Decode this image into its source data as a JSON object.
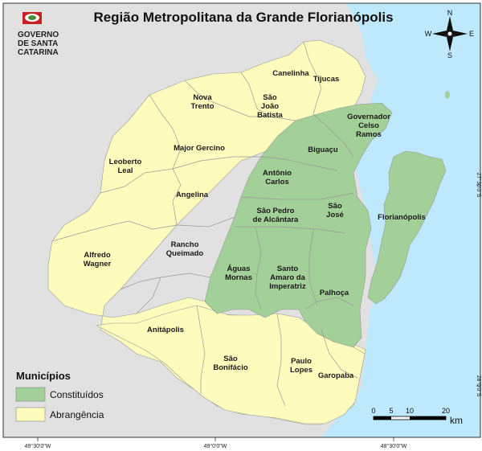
{
  "map": {
    "title": "Região Metropolitana da Grande Florianópolis",
    "logo": {
      "lines": [
        "GOVERNO",
        "DE SANTA",
        "CATARINA"
      ]
    },
    "compass": {
      "n": "N",
      "s": "S",
      "e": "E",
      "w": "W"
    },
    "municipios": [
      {
        "id": "canelinha",
        "lines": [
          "Canelinha"
        ],
        "category": "abrangencia"
      },
      {
        "id": "tijucas",
        "lines": [
          "Tijucas"
        ],
        "category": "abrangencia"
      },
      {
        "id": "nova-trento",
        "lines": [
          "Nova",
          "Trento"
        ],
        "category": "abrangencia"
      },
      {
        "id": "sao-joao-batista",
        "lines": [
          "São",
          "João",
          "Batista"
        ],
        "category": "abrangencia"
      },
      {
        "id": "governador-celso-ramos",
        "lines": [
          "Governador",
          "Celso",
          "Ramos"
        ],
        "category": "constituidos"
      },
      {
        "id": "major-gercino",
        "lines": [
          "Major Gercino"
        ],
        "category": "abrangencia"
      },
      {
        "id": "biguacu",
        "lines": [
          "Biguaçu"
        ],
        "category": "constituidos"
      },
      {
        "id": "leoberto-leal",
        "lines": [
          "Leoberto",
          "Leal"
        ],
        "category": "abrangencia"
      },
      {
        "id": "antonio-carlos",
        "lines": [
          "Antônio",
          "Carlos"
        ],
        "category": "constituidos"
      },
      {
        "id": "angelina",
        "lines": [
          "Angelina"
        ],
        "category": "abrangencia"
      },
      {
        "id": "sao-pedro-de-alcantara",
        "lines": [
          "São Pedro",
          "de Alcântara"
        ],
        "category": "constituidos"
      },
      {
        "id": "sao-jose",
        "lines": [
          "São",
          "José"
        ],
        "category": "constituidos"
      },
      {
        "id": "florianopolis",
        "lines": [
          "Florianópolis"
        ],
        "category": "constituidos"
      },
      {
        "id": "rancho-queimado",
        "lines": [
          "Rancho",
          "Queimado"
        ],
        "category": "abrangencia"
      },
      {
        "id": "alfredo-wagner",
        "lines": [
          "Alfredo",
          "Wagner"
        ],
        "category": "abrangencia"
      },
      {
        "id": "aguas-mornas",
        "lines": [
          "Águas",
          "Mornas"
        ],
        "category": "constituidos"
      },
      {
        "id": "santo-amaro-da-imperatriz",
        "lines": [
          "Santo",
          "Amaro da",
          "Imperatriz"
        ],
        "category": "constituidos"
      },
      {
        "id": "palhoca",
        "lines": [
          "Palhoça"
        ],
        "category": "constituidos"
      },
      {
        "id": "anitapolis",
        "lines": [
          "Anitápolis"
        ],
        "category": "abrangencia"
      },
      {
        "id": "sao-bonifacio",
        "lines": [
          "São",
          "Bonifácio"
        ],
        "category": "abrangencia"
      },
      {
        "id": "paulo-lopes",
        "lines": [
          "Paulo",
          "Lopes"
        ],
        "category": "abrangencia"
      },
      {
        "id": "garopaba",
        "lines": [
          "Garopaba"
        ],
        "category": "abrangencia"
      }
    ],
    "legend": {
      "title": "Municípios",
      "items": [
        {
          "label": "Constituídos",
          "color": "#a3cf98"
        },
        {
          "label": "Abrangência",
          "color": "#fdfcbd"
        }
      ]
    },
    "scale": {
      "ticks": [
        "0",
        "5",
        "10",
        "20"
      ],
      "unit": "km"
    },
    "coordinates": {
      "bottom": [
        "49°30'0\"W",
        "49°0'0\"W",
        "48°30'0\"W"
      ],
      "right": [
        "27°30'0\"S",
        "28°0'0\"S"
      ]
    },
    "colors": {
      "sea": "#bee8fb",
      "outside_land": "#e1e1e1",
      "constituidos": "#a3cf98",
      "abrangencia": "#fdfcbd"
    }
  }
}
